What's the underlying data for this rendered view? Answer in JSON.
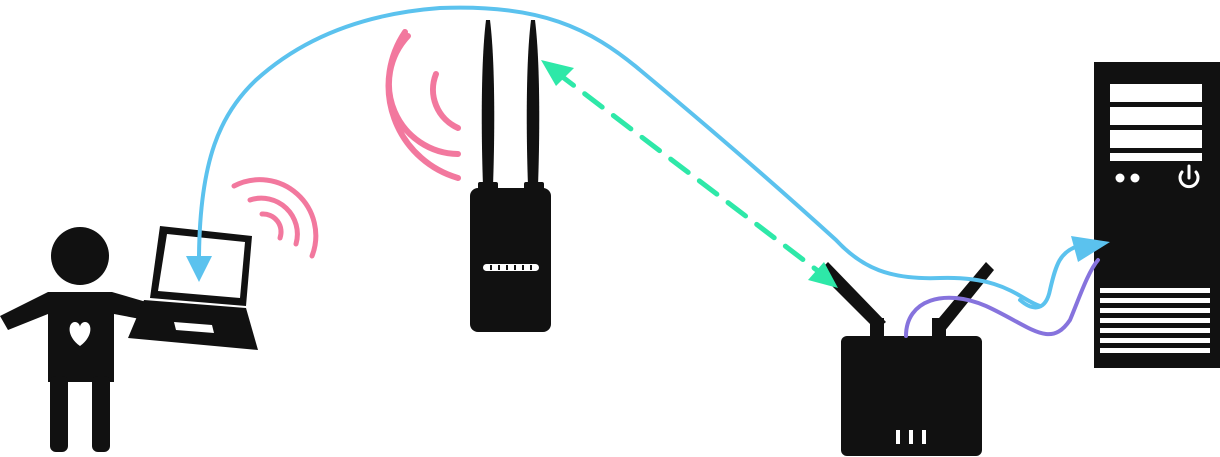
{
  "diagram": {
    "nodes": [
      {
        "id": "person",
        "icon": "person-heart-icon"
      },
      {
        "id": "laptop",
        "icon": "laptop-icon"
      },
      {
        "id": "access_point",
        "icon": "outdoor-access-point-icon"
      },
      {
        "id": "router",
        "icon": "router-icon"
      },
      {
        "id": "server",
        "icon": "server-tower-icon"
      }
    ],
    "links": [
      {
        "from": "server",
        "to": "laptop",
        "kind": "data-path",
        "style": "solid-arrow"
      },
      {
        "from": "router",
        "to": "server",
        "kind": "data-path",
        "style": "solid-arrow"
      },
      {
        "from": "router",
        "to": "server",
        "kind": "wired-connection",
        "style": "solid-line"
      },
      {
        "from": "access_point",
        "to": "router",
        "kind": "wireless-link",
        "style": "dashed-bidirectional-arrow"
      }
    ],
    "wifi_signals": [
      "laptop",
      "access_point"
    ]
  },
  "colors": {
    "device": "#111111",
    "device_detail": "#ffffff",
    "wifi_signal": "#f2789e",
    "data_path": "#5bc2ee",
    "wireless_link": "#2ee8a8",
    "wired_connection": "#8673dd"
  }
}
